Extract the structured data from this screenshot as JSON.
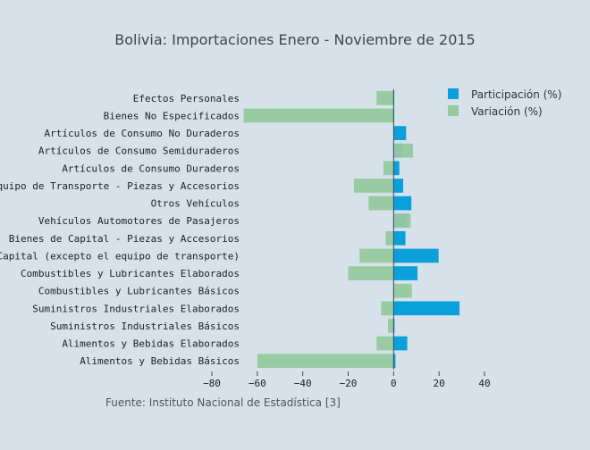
{
  "chart_data": {
    "type": "bar",
    "orientation": "horizontal",
    "barmode": "overlay",
    "title": "Bolivia: Importaciones Enero - Noviembre de 2015",
    "source_note": "Fuente: Instituto Nacional de Estadística [3]",
    "categories": [
      "Efectos Personales",
      "Bienes No Especificados",
      "Artículos de Consumo No Duraderos",
      "Artículos de Consumo Semiduraderos",
      "Artículos de Consumo Duraderos",
      "Equipo de Transporte - Piezas y Accesorios",
      "Otros Vehículos",
      "Vehículos Automotores de Pasajeros",
      "Bienes de Capital - Piezas y Accesorios",
      "Bienes de Capital (excepto el equipo de transporte)",
      "Combustibles y Lubricantes Elaborados",
      "Combustibles y Lubricantes Básicos",
      "Suministros Industriales Elaborados",
      "Suministros Industriales Básicos",
      "Alimentos y Bebidas Elaborados",
      "Alimentos y Bebidas Básicos"
    ],
    "series": [
      {
        "name": "Participación (%)",
        "color": "#0aa0dc",
        "values": [
          0.1,
          0.1,
          5.5,
          4.0,
          2.5,
          4.2,
          7.8,
          5.8,
          5.2,
          19.8,
          10.5,
          0.2,
          29.0,
          0.4,
          6.0,
          0.8
        ]
      },
      {
        "name": "Variación (%)",
        "color": "#96c99e",
        "values": [
          -7.5,
          -66,
          0.0,
          8.5,
          -4.5,
          -17.5,
          -11.0,
          7.5,
          -3.5,
          -15.0,
          -20.0,
          8.0,
          -5.5,
          -2.5,
          -7.5,
          -60.0
        ]
      }
    ],
    "x_ticks": [
      -80,
      -60,
      -40,
      -20,
      0,
      20,
      40
    ],
    "xlim": [
      -80,
      40
    ],
    "legend_position": "top-right",
    "grid": false
  }
}
